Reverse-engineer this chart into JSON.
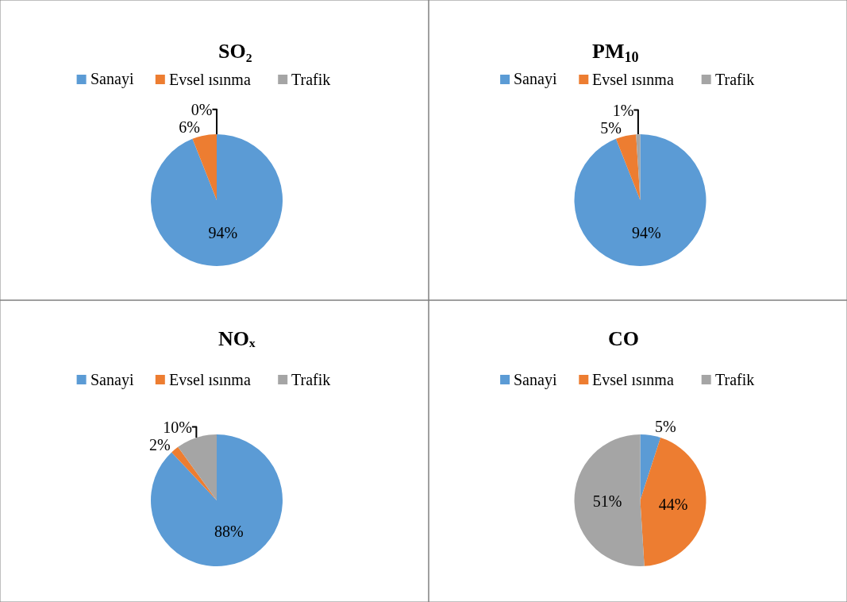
{
  "chart_data": [
    {
      "type": "pie",
      "title": "SO₂",
      "categories": [
        "Sanayi",
        "Evsel ısınma",
        "Trafik"
      ],
      "values": [
        94,
        6,
        0
      ],
      "colors": [
        "#5b9bd5",
        "#ed7d31",
        "#a5a5a5"
      ],
      "value_labels": [
        "94%",
        "6%",
        "0%"
      ],
      "legend": "top"
    },
    {
      "type": "pie",
      "title": "PM$_{10}$",
      "categories": [
        "Sanayi",
        "Evsel ısınma",
        "Trafik"
      ],
      "values": [
        94,
        5,
        1
      ],
      "colors": [
        "#5b9bd5",
        "#ed7d31",
        "#a5a5a5"
      ],
      "value_labels": [
        "94%",
        "5%",
        "1%"
      ],
      "legend": "top"
    },
    {
      "type": "pie",
      "title": "NOₓ",
      "categories": [
        "Sanayi",
        "Evsel ısınma",
        "Trafik"
      ],
      "values": [
        88,
        2,
        10
      ],
      "colors": [
        "#5b9bd5",
        "#ed7d31",
        "#a5a5a5"
      ],
      "value_labels": [
        "88%",
        "2%",
        "10%"
      ],
      "legend": "top"
    },
    {
      "type": "pie",
      "title": "CO",
      "categories": [
        "Sanayi",
        "Evsel ısınma",
        "Trafik"
      ],
      "values": [
        5,
        44,
        51
      ],
      "colors": [
        "#5b9bd5",
        "#ed7d31",
        "#a5a5a5"
      ],
      "value_labels": [
        "5%",
        "44%",
        "51%"
      ],
      "legend": "top"
    }
  ]
}
